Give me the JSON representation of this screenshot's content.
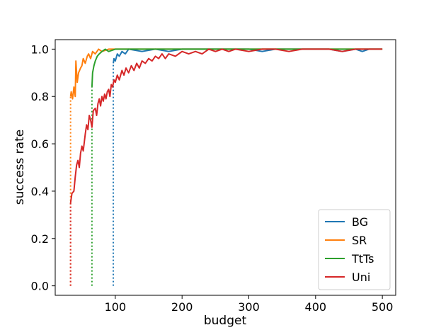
{
  "chart_data": {
    "type": "line",
    "title": "",
    "xlabel": "budget",
    "ylabel": "success rate",
    "xlim": [
      10,
      520
    ],
    "ylim": [
      -0.04,
      1.04
    ],
    "xticks": [
      100,
      200,
      300,
      400,
      500
    ],
    "yticks": [
      0.0,
      0.2,
      0.4,
      0.6,
      0.8,
      1.0
    ],
    "xtick_labels": [
      "100",
      "200",
      "300",
      "400",
      "500"
    ],
    "ytick_labels": [
      "0.0",
      "0.2",
      "0.4",
      "0.6",
      "0.8",
      "1.0"
    ],
    "legend_position": "bottom-right",
    "series": [
      {
        "name": "BG",
        "color": "#1f77b4",
        "start_x": 97,
        "points": [
          [
            97,
            0.94
          ],
          [
            98,
            0.96
          ],
          [
            100,
            0.95
          ],
          [
            103,
            0.98
          ],
          [
            106,
            0.97
          ],
          [
            110,
            0.99
          ],
          [
            115,
            0.98
          ],
          [
            120,
            1.0
          ],
          [
            140,
            0.99
          ],
          [
            160,
            1.0
          ],
          [
            180,
            0.99
          ],
          [
            200,
            1.0
          ],
          [
            250,
            1.0
          ],
          [
            300,
            1.0
          ],
          [
            320,
            0.99
          ],
          [
            340,
            1.0
          ],
          [
            380,
            1.0
          ],
          [
            420,
            1.0
          ],
          [
            440,
            0.99
          ],
          [
            460,
            1.0
          ],
          [
            470,
            0.99
          ],
          [
            480,
            1.0
          ],
          [
            500,
            1.0
          ]
        ]
      },
      {
        "name": "SR",
        "color": "#ff7f0e",
        "start_x": 33,
        "points": [
          [
            33,
            0.8
          ],
          [
            34,
            0.82
          ],
          [
            36,
            0.79
          ],
          [
            38,
            0.84
          ],
          [
            40,
            0.8
          ],
          [
            41,
            0.95
          ],
          [
            43,
            0.86
          ],
          [
            45,
            0.9
          ],
          [
            48,
            0.92
          ],
          [
            50,
            0.93
          ],
          [
            52,
            0.96
          ],
          [
            55,
            0.94
          ],
          [
            58,
            0.97
          ],
          [
            60,
            0.98
          ],
          [
            63,
            0.96
          ],
          [
            66,
            0.99
          ],
          [
            70,
            0.98
          ],
          [
            75,
            1.0
          ],
          [
            80,
            0.99
          ],
          [
            90,
            1.0
          ],
          [
            100,
            1.0
          ],
          [
            150,
            1.0
          ],
          [
            200,
            1.0
          ],
          [
            300,
            1.0
          ],
          [
            400,
            1.0
          ],
          [
            500,
            1.0
          ]
        ]
      },
      {
        "name": "TtTs",
        "color": "#2ca02c",
        "start_x": 65,
        "points": [
          [
            65,
            0.84
          ],
          [
            66,
            0.9
          ],
          [
            68,
            0.93
          ],
          [
            70,
            0.95
          ],
          [
            73,
            0.97
          ],
          [
            76,
            0.98
          ],
          [
            80,
            0.99
          ],
          [
            85,
            1.0
          ],
          [
            90,
            0.99
          ],
          [
            100,
            1.0
          ],
          [
            150,
            1.0
          ],
          [
            200,
            1.0
          ],
          [
            300,
            1.0
          ],
          [
            400,
            1.0
          ],
          [
            500,
            1.0
          ]
        ]
      },
      {
        "name": "Uni",
        "color": "#d62728",
        "start_x": 33,
        "points": [
          [
            33,
            0.35
          ],
          [
            35,
            0.39
          ],
          [
            38,
            0.4
          ],
          [
            40,
            0.46
          ],
          [
            42,
            0.51
          ],
          [
            44,
            0.53
          ],
          [
            46,
            0.5
          ],
          [
            48,
            0.56
          ],
          [
            50,
            0.59
          ],
          [
            52,
            0.57
          ],
          [
            55,
            0.64
          ],
          [
            57,
            0.68
          ],
          [
            59,
            0.66
          ],
          [
            61,
            0.72
          ],
          [
            63,
            0.7
          ],
          [
            65,
            0.67
          ],
          [
            67,
            0.74
          ],
          [
            70,
            0.75
          ],
          [
            72,
            0.72
          ],
          [
            74,
            0.77
          ],
          [
            76,
            0.79
          ],
          [
            78,
            0.76
          ],
          [
            80,
            0.8
          ],
          [
            82,
            0.78
          ],
          [
            84,
            0.81
          ],
          [
            86,
            0.79
          ],
          [
            88,
            0.82
          ],
          [
            90,
            0.83
          ],
          [
            92,
            0.8
          ],
          [
            94,
            0.85
          ],
          [
            96,
            0.84
          ],
          [
            98,
            0.87
          ],
          [
            100,
            0.86
          ],
          [
            103,
            0.89
          ],
          [
            106,
            0.87
          ],
          [
            110,
            0.91
          ],
          [
            113,
            0.89
          ],
          [
            116,
            0.92
          ],
          [
            120,
            0.9
          ],
          [
            124,
            0.93
          ],
          [
            128,
            0.91
          ],
          [
            132,
            0.94
          ],
          [
            136,
            0.92
          ],
          [
            140,
            0.95
          ],
          [
            145,
            0.94
          ],
          [
            150,
            0.96
          ],
          [
            155,
            0.95
          ],
          [
            160,
            0.97
          ],
          [
            165,
            0.96
          ],
          [
            170,
            0.98
          ],
          [
            175,
            0.96
          ],
          [
            180,
            0.98
          ],
          [
            190,
            0.97
          ],
          [
            200,
            0.99
          ],
          [
            210,
            0.98
          ],
          [
            220,
            0.99
          ],
          [
            230,
            0.98
          ],
          [
            240,
            1.0
          ],
          [
            250,
            0.99
          ],
          [
            260,
            1.0
          ],
          [
            270,
            0.99
          ],
          [
            280,
            1.0
          ],
          [
            300,
            0.99
          ],
          [
            320,
            1.0
          ],
          [
            340,
            1.0
          ],
          [
            360,
            0.99
          ],
          [
            380,
            1.0
          ],
          [
            400,
            1.0
          ],
          [
            420,
            1.0
          ],
          [
            440,
            0.99
          ],
          [
            460,
            1.0
          ],
          [
            500,
            1.0
          ]
        ]
      }
    ]
  }
}
